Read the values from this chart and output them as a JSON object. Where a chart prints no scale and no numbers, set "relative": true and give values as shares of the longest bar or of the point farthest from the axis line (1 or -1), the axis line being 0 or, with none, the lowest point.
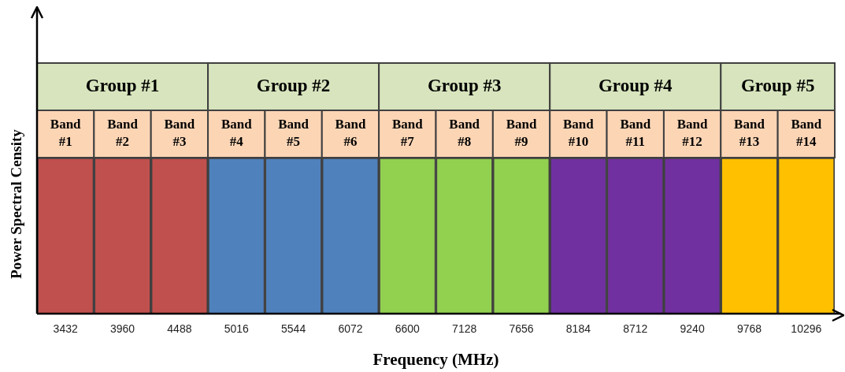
{
  "chart_data": {
    "type": "bar",
    "relative": true,
    "xlabel": "Frequency (MHz)",
    "ylabel": "Power Spectral Censity",
    "legend": false,
    "grid": false,
    "categories": [
      "3432",
      "3960",
      "4488",
      "5016",
      "5544",
      "6072",
      "6600",
      "7128",
      "7656",
      "8184",
      "8712",
      "9240",
      "9768",
      "10296"
    ],
    "values": [
      1,
      1,
      1,
      1,
      1,
      1,
      1,
      1,
      1,
      1,
      1,
      1,
      1,
      1
    ],
    "colors": [
      "#c0504d",
      "#c0504d",
      "#c0504d",
      "#4f81bd",
      "#4f81bd",
      "#4f81bd",
      "#92d050",
      "#92d050",
      "#92d050",
      "#7030a0",
      "#7030a0",
      "#7030a0",
      "#ffc000",
      "#ffc000"
    ],
    "annotations": [
      "Group #1",
      "Group #2",
      "Group #3",
      "Group #4",
      "Group #5",
      "Band #1",
      "Band #2",
      "Band #3",
      "Band #4",
      "Band #5",
      "Band #6",
      "Band #7",
      "Band #8",
      "Band #9",
      "Band #10",
      "Band #11",
      "Band #12",
      "Band #13",
      "Band #14"
    ]
  }
}
